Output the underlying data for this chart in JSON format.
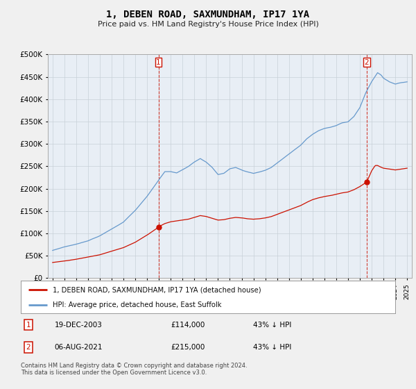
{
  "title": "1, DEBEN ROAD, SAXMUNDHAM, IP17 1YA",
  "subtitle": "Price paid vs. HM Land Registry's House Price Index (HPI)",
  "ylim": [
    0,
    500000
  ],
  "yticks": [
    0,
    50000,
    100000,
    150000,
    200000,
    250000,
    300000,
    350000,
    400000,
    450000,
    500000
  ],
  "background_color": "#f0f0f0",
  "plot_bg_color": "#e8eef5",
  "grid_color": "#c8d0d8",
  "hpi_color": "#6699cc",
  "price_color": "#cc1100",
  "sale1_x": 2003.96,
  "sale1_y": 114000,
  "sale2_x": 2021.58,
  "sale2_y": 215000,
  "legend_label1": "1, DEBEN ROAD, SAXMUNDHAM, IP17 1YA (detached house)",
  "legend_label2": "HPI: Average price, detached house, East Suffolk",
  "sale1_date": "19-DEC-2003",
  "sale1_price": "£114,000",
  "sale1_hpi": "43% ↓ HPI",
  "sale2_date": "06-AUG-2021",
  "sale2_price": "£215,000",
  "sale2_hpi": "43% ↓ HPI",
  "footnote": "Contains HM Land Registry data © Crown copyright and database right 2024.\nThis data is licensed under the Open Government Licence v3.0.",
  "xlim_left": 1994.6,
  "xlim_right": 2025.4
}
